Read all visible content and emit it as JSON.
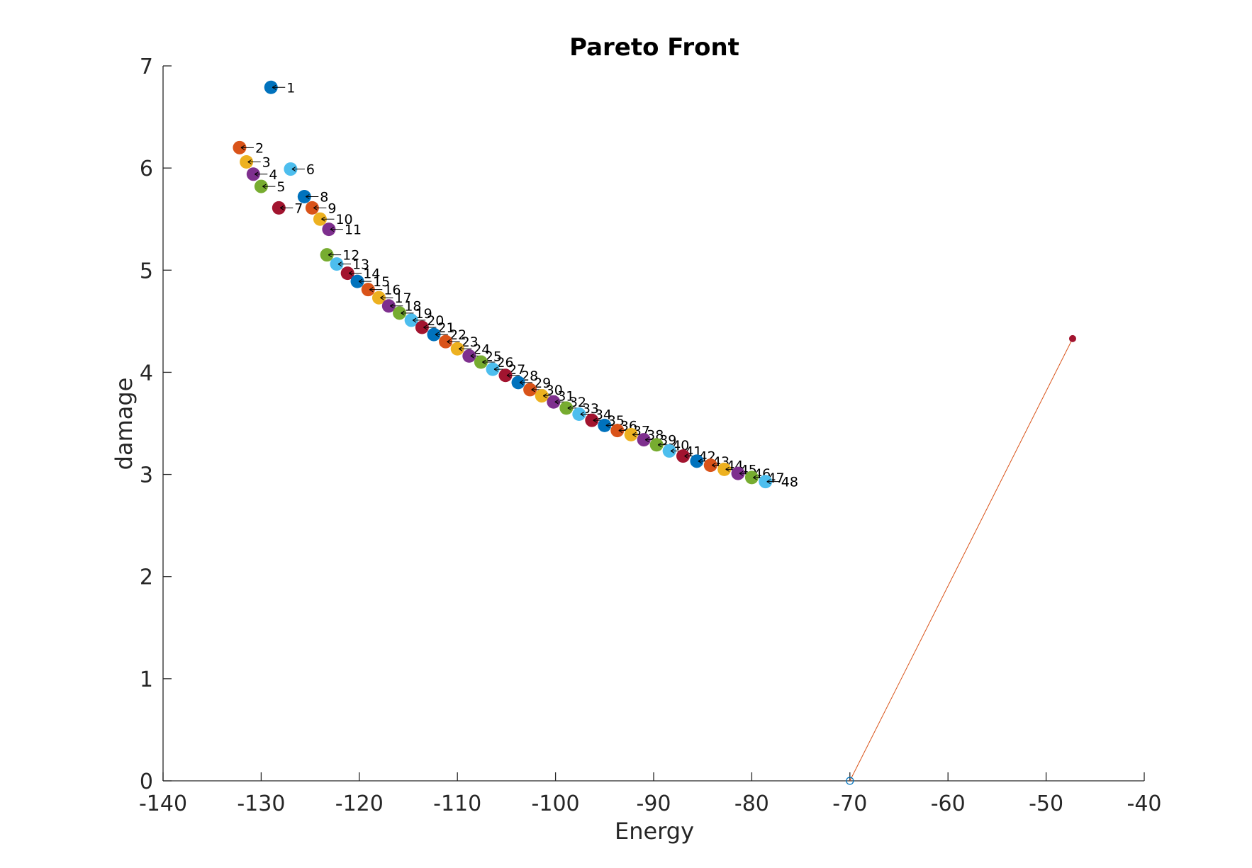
{
  "chart_data": {
    "type": "scatter",
    "title": "Pareto Front",
    "xlabel": "Energy",
    "ylabel": "damage",
    "xlim": [
      -140,
      -40
    ],
    "ylim": [
      0,
      7
    ],
    "xticks": [
      "-140",
      "-130",
      "-120",
      "-110",
      "-100",
      "-90",
      "-80",
      "-70",
      "-60",
      "-50",
      "-40"
    ],
    "yticks": [
      "0",
      "1",
      "2",
      "3",
      "4",
      "5",
      "6",
      "7"
    ],
    "grid": false,
    "legend": "none",
    "palette": [
      "#0072BD",
      "#D95319",
      "#EDB120",
      "#7E2F8E",
      "#77AC30",
      "#4DBEEE",
      "#A2142F"
    ],
    "points": [
      {
        "label": "1",
        "x": -129.0,
        "y": 6.79,
        "color": "#0072BD"
      },
      {
        "label": "2",
        "x": -132.2,
        "y": 6.2,
        "color": "#D95319"
      },
      {
        "label": "3",
        "x": -131.5,
        "y": 6.06,
        "color": "#EDB120"
      },
      {
        "label": "4",
        "x": -130.8,
        "y": 5.94,
        "color": "#7E2F8E"
      },
      {
        "label": "5",
        "x": -130.0,
        "y": 5.82,
        "color": "#77AC30"
      },
      {
        "label": "6",
        "x": -127.0,
        "y": 5.99,
        "color": "#4DBEEE"
      },
      {
        "label": "7",
        "x": -128.2,
        "y": 5.61,
        "color": "#A2142F"
      },
      {
        "label": "8",
        "x": -125.6,
        "y": 5.72,
        "color": "#0072BD"
      },
      {
        "label": "9",
        "x": -124.8,
        "y": 5.61,
        "color": "#D95319"
      },
      {
        "label": "10",
        "x": -124.0,
        "y": 5.5,
        "color": "#EDB120"
      },
      {
        "label": "11",
        "x": -123.1,
        "y": 5.4,
        "color": "#7E2F8E"
      },
      {
        "label": "12",
        "x": -123.3,
        "y": 5.15,
        "color": "#77AC30"
      },
      {
        "label": "13",
        "x": -122.3,
        "y": 5.06,
        "color": "#4DBEEE"
      },
      {
        "label": "14",
        "x": -121.2,
        "y": 4.97,
        "color": "#A2142F"
      },
      {
        "label": "15",
        "x": -120.2,
        "y": 4.89,
        "color": "#0072BD"
      },
      {
        "label": "16",
        "x": -119.1,
        "y": 4.81,
        "color": "#D95319"
      },
      {
        "label": "17",
        "x": -118.0,
        "y": 4.73,
        "color": "#EDB120"
      },
      {
        "label": "18",
        "x": -117.0,
        "y": 4.65,
        "color": "#7E2F8E"
      },
      {
        "label": "19",
        "x": -115.9,
        "y": 4.58,
        "color": "#77AC30"
      },
      {
        "label": "20",
        "x": -114.7,
        "y": 4.51,
        "color": "#4DBEEE"
      },
      {
        "label": "21",
        "x": -113.6,
        "y": 4.44,
        "color": "#A2142F"
      },
      {
        "label": "22",
        "x": -112.4,
        "y": 4.37,
        "color": "#0072BD"
      },
      {
        "label": "23",
        "x": -111.2,
        "y": 4.3,
        "color": "#D95319"
      },
      {
        "label": "24",
        "x": -110.0,
        "y": 4.23,
        "color": "#EDB120"
      },
      {
        "label": "25",
        "x": -108.8,
        "y": 4.16,
        "color": "#7E2F8E"
      },
      {
        "label": "26",
        "x": -107.6,
        "y": 4.1,
        "color": "#77AC30"
      },
      {
        "label": "27",
        "x": -106.4,
        "y": 4.03,
        "color": "#4DBEEE"
      },
      {
        "label": "28",
        "x": -105.1,
        "y": 3.97,
        "color": "#A2142F"
      },
      {
        "label": "29",
        "x": -103.8,
        "y": 3.9,
        "color": "#0072BD"
      },
      {
        "label": "30",
        "x": -102.6,
        "y": 3.83,
        "color": "#D95319"
      },
      {
        "label": "31",
        "x": -101.4,
        "y": 3.77,
        "color": "#EDB120"
      },
      {
        "label": "32",
        "x": -100.2,
        "y": 3.71,
        "color": "#7E2F8E"
      },
      {
        "label": "33",
        "x": -98.9,
        "y": 3.65,
        "color": "#77AC30"
      },
      {
        "label": "34",
        "x": -97.6,
        "y": 3.59,
        "color": "#4DBEEE"
      },
      {
        "label": "35",
        "x": -96.3,
        "y": 3.53,
        "color": "#A2142F"
      },
      {
        "label": "36",
        "x": -95.0,
        "y": 3.48,
        "color": "#0072BD"
      },
      {
        "label": "37",
        "x": -93.7,
        "y": 3.43,
        "color": "#D95319"
      },
      {
        "label": "38",
        "x": -92.3,
        "y": 3.39,
        "color": "#EDB120"
      },
      {
        "label": "39",
        "x": -91.0,
        "y": 3.34,
        "color": "#7E2F8E"
      },
      {
        "label": "40",
        "x": -89.7,
        "y": 3.29,
        "color": "#77AC30"
      },
      {
        "label": "41",
        "x": -88.4,
        "y": 3.23,
        "color": "#4DBEEE"
      },
      {
        "label": "42",
        "x": -87.0,
        "y": 3.18,
        "color": "#A2142F"
      },
      {
        "label": "43",
        "x": -85.6,
        "y": 3.13,
        "color": "#0072BD"
      },
      {
        "label": "44",
        "x": -84.2,
        "y": 3.09,
        "color": "#D95319"
      },
      {
        "label": "45",
        "x": -82.8,
        "y": 3.05,
        "color": "#EDB120"
      },
      {
        "label": "46",
        "x": -81.4,
        "y": 3.01,
        "color": "#7E2F8E"
      },
      {
        "label": "47",
        "x": -80.0,
        "y": 2.97,
        "color": "#77AC30"
      },
      {
        "label": "48",
        "x": -78.6,
        "y": 2.93,
        "color": "#4DBEEE"
      }
    ],
    "line": {
      "points": [
        [
          -70.0,
          0.0
        ],
        [
          -47.3,
          4.33
        ]
      ],
      "color": "#D95319",
      "start_marker_color": "#0072BD",
      "end_marker_color": "#A2142F"
    }
  }
}
